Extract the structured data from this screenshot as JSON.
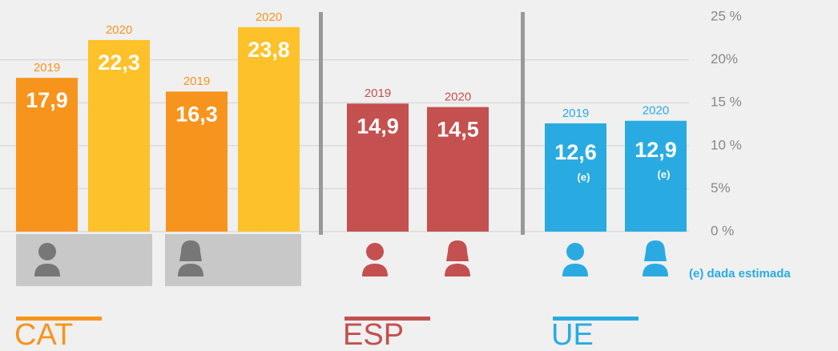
{
  "chart_data": {
    "type": "bar",
    "categories": [
      "2019",
      "2020",
      "2019",
      "2020",
      "2019",
      "2020",
      "2019",
      "2020"
    ],
    "values": [
      17.9,
      22.3,
      16.3,
      23.8,
      14.9,
      14.5,
      12.6,
      12.9
    ],
    "value_labels": [
      "17,9",
      "22,3",
      "16,3",
      "23,8",
      "14,9",
      "14,5",
      "12,6",
      "12,9"
    ],
    "colors": [
      "#f7941d",
      "#fdc12a",
      "#f7941d",
      "#fdc12a",
      "#c4504f",
      "#c4504f",
      "#29abe2",
      "#29abe2"
    ],
    "notes": [
      null,
      null,
      null,
      null,
      null,
      null,
      "(e)",
      "(e)"
    ],
    "groups": [
      {
        "label": "CAT",
        "color": "#f7941d"
      },
      {
        "label": "ESP",
        "color": "#c4504f"
      },
      {
        "label": "UE",
        "color": "#29abe2"
      }
    ],
    "ylim": [
      0,
      25
    ],
    "yticks": [
      {
        "value": 0,
        "label": "0 %"
      },
      {
        "value": 5,
        "label": "5%"
      },
      {
        "value": 10,
        "label": "10 %"
      },
      {
        "value": 15,
        "label": "15 %"
      },
      {
        "value": 20,
        "label": "20%"
      },
      {
        "value": 25,
        "label": "25 %"
      }
    ],
    "grid": true,
    "footnote": "(e) dada estimada"
  }
}
